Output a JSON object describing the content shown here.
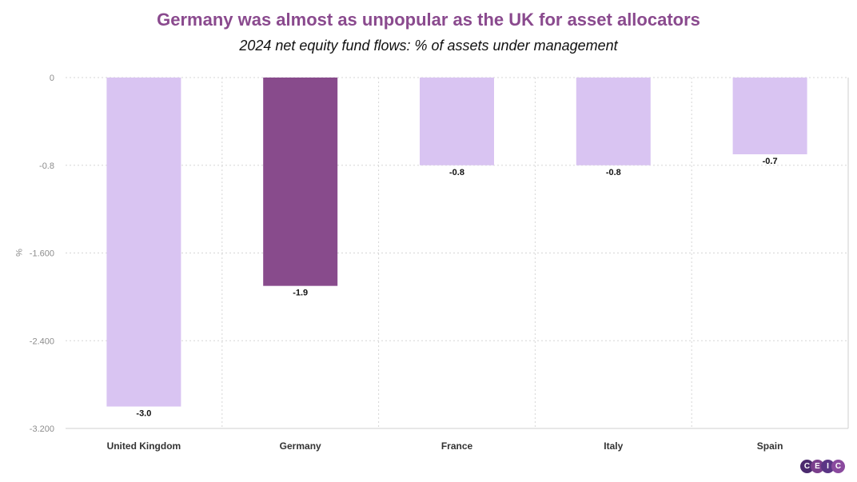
{
  "chart_data": {
    "type": "bar",
    "title": "Germany was almost as unpopular as the UK for asset allocators",
    "subtitle": "2024 net equity fund flows: % of assets under management",
    "ylabel": "%",
    "xlabel": "",
    "categories": [
      "United Kingdom",
      "Germany",
      "France",
      "Italy",
      "Spain"
    ],
    "values": [
      -3.0,
      -1.9,
      -0.8,
      -0.8,
      -0.7
    ],
    "data_labels": [
      "-3.0",
      "-1.9",
      "-0.8",
      "-0.8",
      "-0.7"
    ],
    "ylim": [
      -3.2,
      0
    ],
    "yticks": [
      0,
      -0.8,
      -1.6,
      -2.4,
      -3.2
    ],
    "ytick_labels": [
      "0",
      "-0.8",
      "-1.600",
      "-2.400",
      "-3.200"
    ],
    "highlight_category": "Germany",
    "colors": {
      "default": "#d9c4f2",
      "highlight": "#884b8c"
    },
    "grid": true
  },
  "logo": {
    "letters": [
      "C",
      "E",
      "I",
      "C"
    ],
    "colors": [
      "#4b2a6e",
      "#7a3f8c",
      "#5b3585",
      "#8a4a9e"
    ]
  }
}
